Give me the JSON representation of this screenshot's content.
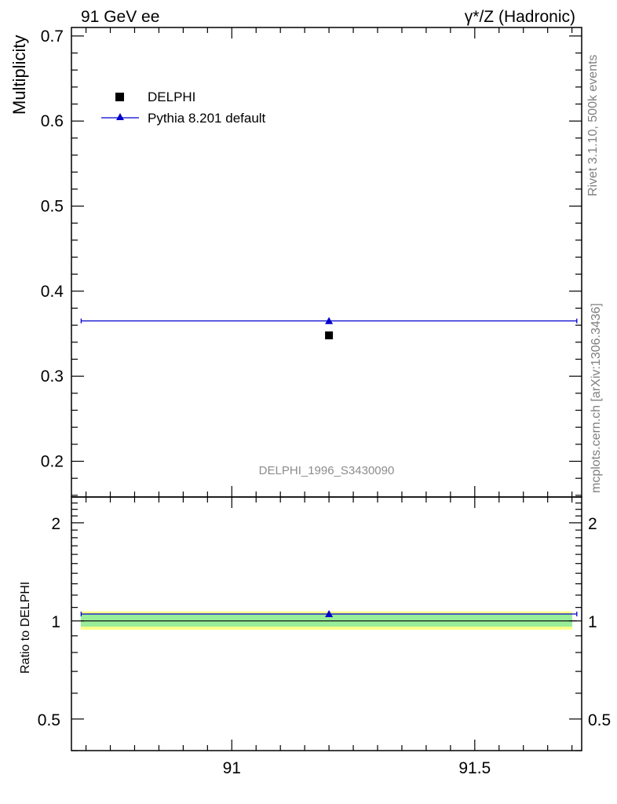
{
  "header": {
    "left_title": "91 GeV ee",
    "right_title": "γ*/Z (Hadronic)"
  },
  "side_labels": {
    "rivet": "Rivet 3.1.10,  500k events",
    "mcplots": "mcplots.cern.ch [arXiv:1306.3436]"
  },
  "analysis_id": "DELPHI_1996_S3430090",
  "colors": {
    "mc": "#0000cc",
    "data": "#000000",
    "band_inner": "#99ee99",
    "band_outer": "#ffff88"
  },
  "chart_data": [
    {
      "type": "scatter",
      "panel": "main",
      "title": "",
      "ylabel": "Multiplicity",
      "xlim": [
        90.67,
        91.72
      ],
      "ylim": [
        0.158,
        0.71
      ],
      "yticks": [
        0.2,
        0.3,
        0.4,
        0.5,
        0.6,
        0.7
      ],
      "ytick_labels": [
        "0.2",
        "0.3",
        "0.4",
        "0.5",
        "0.6",
        "0.7"
      ],
      "legend_position": "top-left",
      "series": [
        {
          "name": "DELPHI",
          "marker": "square",
          "x": [
            91.2
          ],
          "y": [
            0.348
          ]
        },
        {
          "name": "Pythia 8.201 default",
          "marker": "triangle",
          "x": [
            91.2
          ],
          "y": [
            0.365
          ],
          "xerr_range": [
            90.69,
            91.71
          ]
        }
      ]
    },
    {
      "type": "scatter",
      "panel": "ratio",
      "ylabel": "Ratio to DELPHI",
      "xlim": [
        90.67,
        91.72
      ],
      "ylim": [
        0.4,
        2.4
      ],
      "log_y": true,
      "yticks": [
        0.5,
        1,
        2
      ],
      "ytick_labels": [
        "0.5",
        "1",
        "2"
      ],
      "xticks": [
        91,
        91.5
      ],
      "xtick_labels": [
        "91",
        "91.5"
      ],
      "bands": [
        {
          "level": "outer",
          "low": 0.94,
          "high": 1.07
        },
        {
          "level": "inner",
          "low": 0.96,
          "high": 1.05
        }
      ],
      "series": [
        {
          "name": "Pythia 8.201 default",
          "x": [
            91.2
          ],
          "y": [
            1.05
          ]
        }
      ]
    }
  ]
}
